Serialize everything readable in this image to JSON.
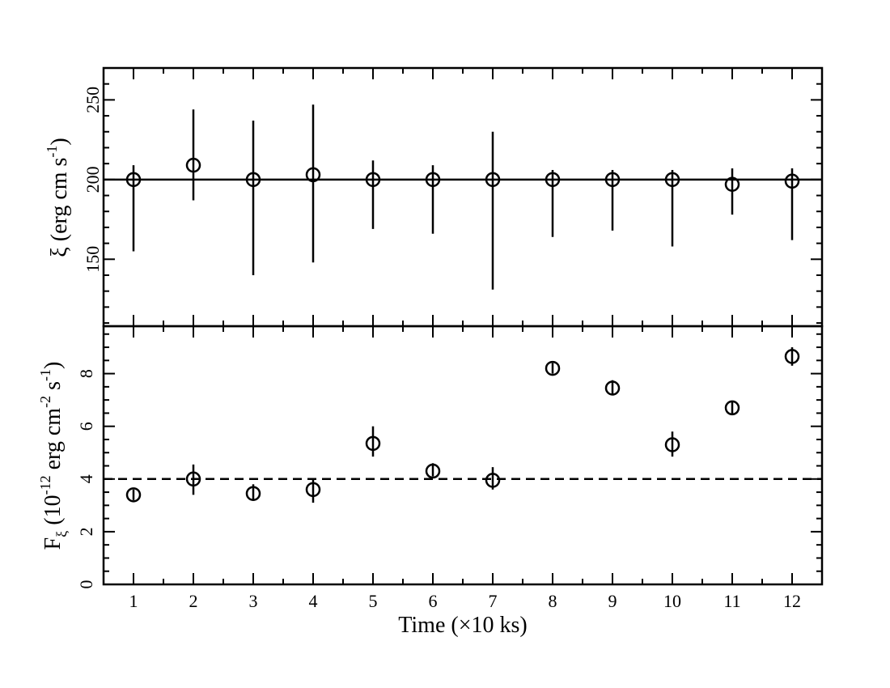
{
  "chart_data": [
    {
      "type": "scatter",
      "panel": "top",
      "ylabel": {
        "main": "ξ (erg cm s",
        "sup": "-1",
        "close": ")"
      },
      "xlabel": "",
      "xlim": [
        0.5,
        12.5
      ],
      "ylim": [
        108,
        270
      ],
      "ytick_values": [
        150,
        200,
        250
      ],
      "reference_line": {
        "y": 200,
        "style": "solid"
      },
      "grid": false,
      "x": [
        1,
        2,
        3,
        4,
        5,
        6,
        7,
        8,
        9,
        10,
        11,
        12
      ],
      "values": [
        200,
        209,
        200,
        203,
        200,
        200,
        200,
        200,
        200,
        200,
        197,
        199
      ],
      "err_low": [
        155,
        187,
        140,
        148,
        169,
        166,
        131,
        164,
        168,
        158,
        178,
        162
      ],
      "err_high": [
        209,
        244,
        237,
        247,
        212,
        209,
        230,
        206,
        206,
        206,
        207,
        207
      ]
    },
    {
      "type": "scatter",
      "panel": "bottom",
      "ylabel": {
        "main": "F",
        "sub": "ξ",
        "mid": " (10",
        "sup1": "-12",
        "mid2": " erg cm",
        "sup2": "-2",
        "mid3": " s",
        "sup3": "-1",
        "close": ")"
      },
      "xlabel": "Time (×10 ks)",
      "xlim": [
        0.5,
        12.5
      ],
      "ylim": [
        0,
        9.8
      ],
      "ytick_values": [
        0,
        2,
        4,
        6,
        8
      ],
      "xtick_values": [
        1,
        2,
        3,
        4,
        5,
        6,
        7,
        8,
        9,
        10,
        11,
        12
      ],
      "reference_line": {
        "y": 4.0,
        "style": "dashed"
      },
      "grid": false,
      "x": [
        1,
        2,
        3,
        4,
        5,
        6,
        7,
        8,
        9,
        10,
        11,
        12
      ],
      "values": [
        3.4,
        4.0,
        3.45,
        3.6,
        5.35,
        4.3,
        3.95,
        8.2,
        7.45,
        5.3,
        6.7,
        8.65
      ],
      "err_low": [
        3.2,
        3.4,
        3.2,
        3.1,
        4.85,
        4.1,
        3.6,
        8.0,
        7.2,
        4.85,
        6.45,
        8.3
      ],
      "err_high": [
        3.6,
        4.55,
        3.8,
        4.0,
        6.0,
        4.6,
        4.45,
        8.4,
        7.75,
        5.8,
        6.95,
        9.0
      ]
    }
  ]
}
